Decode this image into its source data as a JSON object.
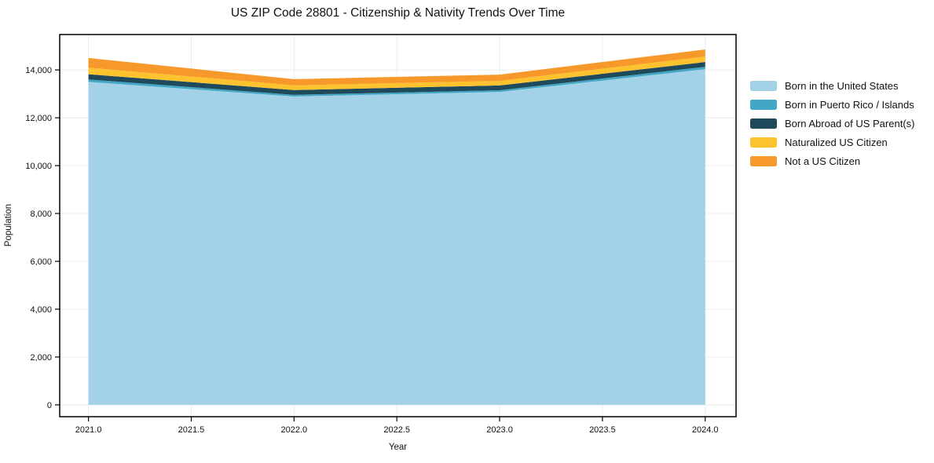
{
  "title": "US ZIP Code 28801 - Citizenship & Nativity Trends Over Time",
  "chart_data": {
    "type": "area",
    "stacked": true,
    "title": "US ZIP Code 28801 - Citizenship & Nativity Trends Over Time",
    "xlabel": "Year",
    "ylabel": "Population",
    "x": [
      2021,
      2022,
      2023,
      2024
    ],
    "series": [
      {
        "name": "Born in the United States",
        "color": "#a3d2e8",
        "values": [
          13500,
          12890,
          13080,
          14030
        ]
      },
      {
        "name": "Born in Puerto Rico / Islands",
        "color": "#41a7c5",
        "values": [
          100,
          70,
          70,
          100
        ]
      },
      {
        "name": "Born Abroad of US Parent(s)",
        "color": "#1f4a5c",
        "values": [
          220,
          200,
          200,
          200
        ]
      },
      {
        "name": "Naturalized US Citizen",
        "color": "#fdc32f",
        "values": [
          275,
          195,
          195,
          230
        ]
      },
      {
        "name": "Not a US Citizen",
        "color": "#f7982a",
        "values": [
          405,
          260,
          260,
          295
        ]
      }
    ],
    "totals": [
      14500,
      13615,
      13805,
      14855
    ],
    "xtick_values": [
      2021.0,
      2021.5,
      2022.0,
      2022.5,
      2023.0,
      2023.5,
      2024.0
    ],
    "xtick_labels": [
      "2021.0",
      "2021.5",
      "2022.0",
      "2022.5",
      "2023.0",
      "2023.5",
      "2024.0"
    ],
    "ytick_values": [
      0,
      2000,
      4000,
      6000,
      8000,
      10000,
      12000,
      14000
    ],
    "ytick_labels": [
      "0",
      "2,000",
      "4,000",
      "6,000",
      "8,000",
      "10,000",
      "12,000",
      "14,000"
    ],
    "xlim": [
      2020.86,
      2024.15
    ],
    "ylim": [
      -495,
      15480
    ],
    "grid": true,
    "legend_position": "right",
    "colors": {
      "grid": "#ececec",
      "spine": "#000000",
      "tick_text": "#111111"
    }
  }
}
